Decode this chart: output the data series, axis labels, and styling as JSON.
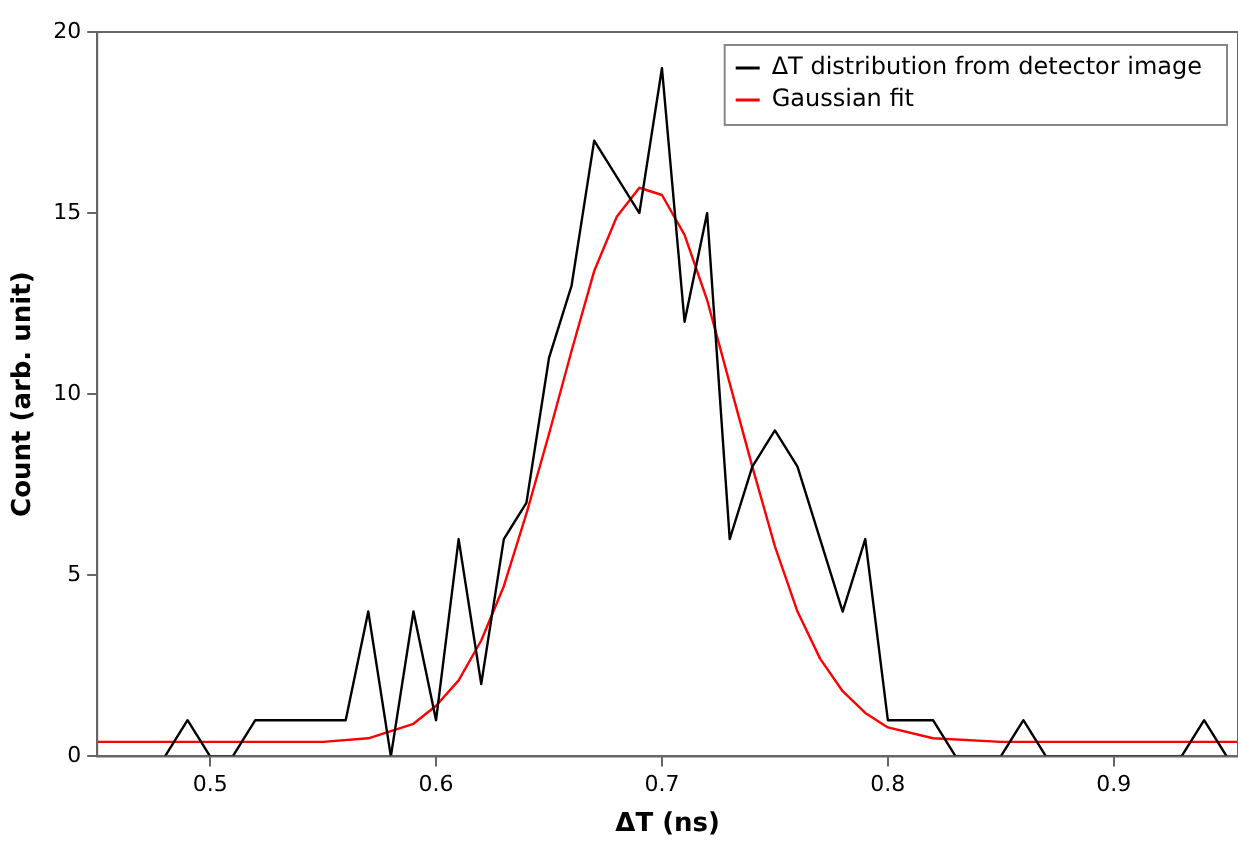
{
  "chart_data": {
    "type": "line",
    "xlabel": "ΔT (ns)",
    "ylabel": "Count (arb. unit)",
    "x": [
      0.48,
      0.49,
      0.5,
      0.51,
      0.52,
      0.53,
      0.54,
      0.55,
      0.56,
      0.57,
      0.58,
      0.59,
      0.6,
      0.61,
      0.62,
      0.63,
      0.64,
      0.65,
      0.66,
      0.67,
      0.68,
      0.69,
      0.7,
      0.71,
      0.72,
      0.73,
      0.74,
      0.75,
      0.76,
      0.77,
      0.78,
      0.79,
      0.8,
      0.81,
      0.82,
      0.83,
      0.84,
      0.85,
      0.86,
      0.87,
      0.88,
      0.89,
      0.9,
      0.91,
      0.92,
      0.93,
      0.94,
      0.95
    ],
    "series": [
      {
        "name": "ΔT distribution from detector image",
        "color": "#000000",
        "values": [
          0,
          1,
          0,
          0,
          1,
          1,
          1,
          1,
          1,
          4,
          0,
          4,
          1,
          6,
          2,
          6,
          7,
          11,
          13,
          17,
          16,
          15,
          19,
          12,
          15,
          6,
          8,
          9,
          8,
          6,
          4,
          6,
          1,
          1,
          1,
          0,
          0,
          0,
          1,
          0,
          0,
          0,
          0,
          0,
          0,
          0,
          1,
          0
        ]
      },
      {
        "name": "Gaussian fit",
        "color": "#ff0000",
        "x": [
          0.45,
          0.5,
          0.55,
          0.57,
          0.59,
          0.6,
          0.61,
          0.62,
          0.63,
          0.64,
          0.65,
          0.66,
          0.67,
          0.68,
          0.69,
          0.7,
          0.71,
          0.72,
          0.73,
          0.74,
          0.75,
          0.76,
          0.77,
          0.78,
          0.79,
          0.8,
          0.82,
          0.85,
          0.9,
          0.955
        ],
        "values": [
          0.4,
          0.4,
          0.4,
          0.5,
          0.9,
          1.4,
          2.1,
          3.2,
          4.7,
          6.7,
          8.9,
          11.2,
          13.4,
          14.9,
          15.7,
          15.5,
          14.4,
          12.6,
          10.3,
          8.0,
          5.8,
          4.0,
          2.7,
          1.8,
          1.2,
          0.8,
          0.5,
          0.4,
          0.4,
          0.4
        ]
      }
    ],
    "xlim": [
      0.45,
      0.955
    ],
    "xticks": [
      0.5,
      0.6,
      0.7,
      0.8,
      0.9
    ],
    "ylim": [
      0,
      20
    ],
    "yticks": [
      0,
      5,
      10,
      15,
      20
    ],
    "grid": false,
    "legend": "top right",
    "marker": "none",
    "line_style": "solid"
  }
}
